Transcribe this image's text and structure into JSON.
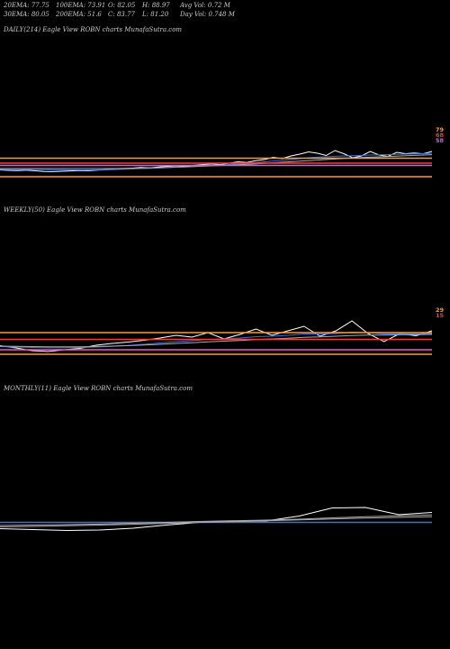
{
  "header": {
    "row1": [
      {
        "label": "20EMA:",
        "value": "77.75"
      },
      {
        "label": "100EMA:",
        "value": "73.91"
      },
      {
        "label": "O:",
        "value": "82.05"
      },
      {
        "label": "H:",
        "value": "88.97"
      },
      {
        "label": "Avg Vol:",
        "value": "0.72  M"
      }
    ],
    "row2": [
      {
        "label": "30EMA:",
        "value": "80.05"
      },
      {
        "label": "200EMA:",
        "value": "51.6"
      },
      {
        "label": "C:",
        "value": "83.77"
      },
      {
        "label": "L:",
        "value": "81.20"
      },
      {
        "label": "Day Vol:",
        "value": "0.748  M"
      }
    ]
  },
  "panels": {
    "daily": {
      "title": "DAILY(214) Eagle   View  ROBN  charts MunafaSutra.com",
      "end_labels": [
        "79",
        "68",
        "58"
      ]
    },
    "weekly": {
      "title": "WEEKLY(50) Eagle   View  ROBN  charts MunafaSutra.com",
      "end_labels": [
        "29",
        "15"
      ]
    },
    "monthly": {
      "title": "MONTHLY(11) Eagle   View  ROBN  charts MunafaSutra.com",
      "end_labels": []
    }
  },
  "chart_data": [
    {
      "type": "line",
      "title": "DAILY(214) Eagle   View  ROBN  charts MunafaSutra.com",
      "ylim": [
        0,
        100
      ],
      "series": [
        {
          "color": "#ffffff",
          "values": [
            11.5,
            11,
            10.8,
            11.2,
            10.5,
            9.8,
            9.6,
            10,
            10.4,
            10.9,
            10.6,
            11.2,
            11.8,
            12.1,
            12.9,
            13.5,
            14.2,
            13.8,
            14.8,
            15.5,
            16,
            15.4,
            16.8,
            17.5,
            18.2,
            17.4,
            19,
            20.5,
            19.8,
            21.8,
            23,
            25.5,
            24,
            27,
            29,
            31.5,
            30,
            27.5,
            33,
            29.5,
            25,
            27,
            32,
            28,
            26.5,
            31,
            29.5,
            30.2,
            29.4,
            32
          ]
        },
        {
          "color": "#3d6fd8",
          "values": [
            12,
            11.9,
            11.9,
            11.9,
            11.9,
            11.7,
            11.6,
            11.6,
            11.5,
            11.5,
            11.5,
            11.6,
            11.7,
            11.9,
            12.2,
            12.5,
            12.9,
            13.1,
            13.6,
            14,
            14.5,
            14.8,
            15.3,
            15.9,
            16.5,
            16.9,
            17.5,
            18.2,
            18.8,
            19.6,
            20.5,
            21.4,
            22,
            23,
            24,
            25,
            25.6,
            26,
            26.6,
            27,
            27.2,
            27.6,
            28,
            28.3,
            28.5,
            28.8,
            29,
            29.3,
            29.5,
            29.8
          ]
        },
        {
          "color": "#aaaaaa",
          "values": [
            13,
            13,
            13,
            13,
            13,
            13,
            13,
            13,
            13,
            13,
            13,
            13,
            13,
            13,
            13.2,
            13.4,
            13.6,
            13.8,
            14,
            14.3,
            14.6,
            14.9,
            15.2,
            15.6,
            16,
            16.4,
            16.8,
            17.3,
            17.8,
            18.3,
            18.8,
            19.4,
            20,
            20.6,
            21.2,
            21.8,
            22.4,
            23,
            23.6,
            24.2,
            24.8,
            25.2,
            25.6,
            26,
            26.4,
            26.8,
            27.2,
            27.6,
            28,
            28.4
          ]
        },
        {
          "color": "#ff9933",
          "values": [
            24.5,
            24.5,
            24.5,
            24.5,
            24.5,
            24.5,
            24.5,
            24.5,
            24.5,
            24.5,
            24.5,
            24.5,
            24.5,
            24.5,
            24.5,
            24.5,
            24.5,
            24.5,
            24.5,
            24.5,
            24.5,
            24.5,
            24.5,
            24.5,
            24.5,
            24.5,
            24.5,
            24.5,
            24.5,
            24.5,
            24.5,
            24.5,
            24.5,
            24.5,
            24.5,
            24.5,
            24.5,
            24.5,
            24.5,
            24.5,
            24.5,
            24.5,
            24.5,
            24.5,
            24.5,
            24.5,
            24.5,
            24.5,
            24.5,
            24.5
          ]
        },
        {
          "color": "#f23c3c",
          "values": [
            19,
            19,
            19,
            19,
            19,
            19,
            19,
            19,
            19,
            19,
            19,
            19,
            19,
            19,
            19,
            19,
            19,
            19,
            19,
            19,
            19,
            19,
            19,
            19,
            19,
            19,
            19,
            19,
            19,
            19,
            19,
            19,
            19,
            19,
            19,
            19,
            19,
            19,
            19,
            19,
            19,
            19,
            19,
            19,
            19,
            19,
            19,
            19,
            19,
            19
          ]
        },
        {
          "color": "#ee55cc",
          "values": [
            16.5,
            16.5,
            16.5,
            16.5,
            16.5,
            16.5,
            16.5,
            16.5,
            16.5,
            16.5,
            16.5,
            16.5,
            16.5,
            16.5,
            16.5,
            16.5,
            16.5,
            16.5,
            16.5,
            16.5,
            16.5,
            16.5,
            16.5,
            16.5,
            16.5,
            16.5,
            16.5,
            16.5,
            16.5,
            16.5,
            16.5,
            16.5,
            16.5,
            16.5,
            16.5,
            16.5,
            16.5,
            16.5,
            16.5,
            16.5,
            16.5,
            16.5,
            16.5,
            16.5,
            16.5,
            16.5,
            16.5,
            16.5,
            16.5,
            16.5
          ]
        },
        {
          "color": "#ff9933",
          "values": [
            4,
            4,
            4,
            4,
            4,
            4,
            4,
            4,
            4,
            4,
            4,
            4,
            4,
            4,
            4,
            4,
            4,
            4,
            4,
            4,
            4,
            4,
            4,
            4,
            4,
            4,
            4,
            4,
            4,
            4,
            4,
            4,
            4,
            4,
            4,
            4,
            4,
            4,
            4,
            4,
            4,
            4,
            4,
            4,
            4,
            4,
            4,
            4,
            4,
            4
          ]
        }
      ]
    },
    {
      "type": "line",
      "title": "WEEKLY(50) Eagle   View  ROBN  charts MunafaSutra.com",
      "ylim": [
        0,
        100
      ],
      "series": [
        {
          "color": "#ffffff",
          "values": [
            16.5,
            14,
            11,
            10,
            12,
            13.5,
            17,
            19,
            20.5,
            22.5,
            25,
            28,
            26,
            31,
            24,
            29,
            35,
            28,
            33,
            38,
            27,
            33,
            44,
            30,
            21,
            30,
            27.5,
            33
          ]
        },
        {
          "color": "#3d6fd8",
          "values": [
            15.5,
            15,
            14.5,
            14.2,
            14.2,
            14.5,
            15,
            15.8,
            16.8,
            18,
            19.5,
            21,
            22,
            23.5,
            24,
            25,
            26.5,
            27,
            28,
            29.5,
            29.5,
            30,
            31.5,
            31,
            29.5,
            29.8,
            29.5,
            30
          ]
        },
        {
          "color": "#aaaaaa",
          "values": [
            16,
            15.8,
            15.5,
            15.3,
            15.2,
            15.3,
            15.6,
            16,
            16.5,
            17.2,
            18,
            19,
            19.8,
            20.8,
            21.5,
            22.3,
            23.2,
            24,
            24.8,
            25.7,
            26.3,
            27,
            27.8,
            28.2,
            28.3,
            28.6,
            28.8,
            29
          ]
        },
        {
          "color": "#ff9933",
          "values": [
            31,
            31,
            31,
            31,
            31,
            31,
            31,
            31,
            31,
            31,
            31,
            31,
            31,
            31,
            31,
            31,
            31,
            31,
            31,
            31,
            31,
            31,
            31,
            31,
            31,
            31,
            31,
            31
          ]
        },
        {
          "color": "#f23c3c",
          "values": [
            23.5,
            23.5,
            23.5,
            23.5,
            23.5,
            23.5,
            23.5,
            23.5,
            23.5,
            23.5,
            23.5,
            23.5,
            23.5,
            23.5,
            23.5,
            23.5,
            23.5,
            23.5,
            23.5,
            23.5,
            23.5,
            23.5,
            23.5,
            23.5,
            23.5,
            23.5,
            23.5,
            23.5
          ]
        },
        {
          "color": "#ee55cc",
          "values": [
            12,
            12,
            12,
            12,
            12,
            12,
            12,
            12,
            12,
            12,
            12,
            12,
            12,
            12,
            12,
            12,
            12,
            12,
            12,
            12,
            12,
            12,
            12,
            12,
            12,
            12,
            12,
            12
          ]
        },
        {
          "color": "#ff9933",
          "values": [
            7,
            7,
            7,
            7,
            7,
            7,
            7,
            7,
            7,
            7,
            7,
            7,
            7,
            7,
            7,
            7,
            7,
            7,
            7,
            7,
            7,
            7,
            7,
            7,
            7,
            7,
            7,
            7
          ]
        }
      ]
    },
    {
      "type": "line",
      "title": "MONTHLY(11) Eagle   View  ROBN  charts MunafaSutra.com",
      "ylim": [
        0,
        100
      ],
      "series": [
        {
          "color": "#ffffff",
          "values": [
            13.5,
            12.5,
            11.5,
            12,
            14,
            17.5,
            20.5,
            21.5,
            22,
            27.5,
            36.5,
            37,
            29,
            31.5
          ]
        },
        {
          "color": "#3d6fd8",
          "values": [
            20.5,
            20.5,
            20.5,
            20.5,
            20.5,
            20.5,
            20.5,
            20.5,
            20.5,
            20.5,
            20.5,
            20.5,
            20.5,
            20.5
          ]
        },
        {
          "color": "#aaaaaa",
          "values": [
            17,
            17.5,
            18,
            18.6,
            19.5,
            20.5,
            21.5,
            22.3,
            23,
            24,
            25.5,
            26.8,
            27.8,
            28.8
          ]
        },
        {
          "color": "#aaaaaa",
          "values": [
            15.5,
            16,
            16.8,
            17.5,
            18.4,
            19.4,
            20.4,
            21.4,
            22.3,
            23.3,
            24.3,
            25.3,
            26,
            26.8
          ]
        }
      ]
    }
  ]
}
